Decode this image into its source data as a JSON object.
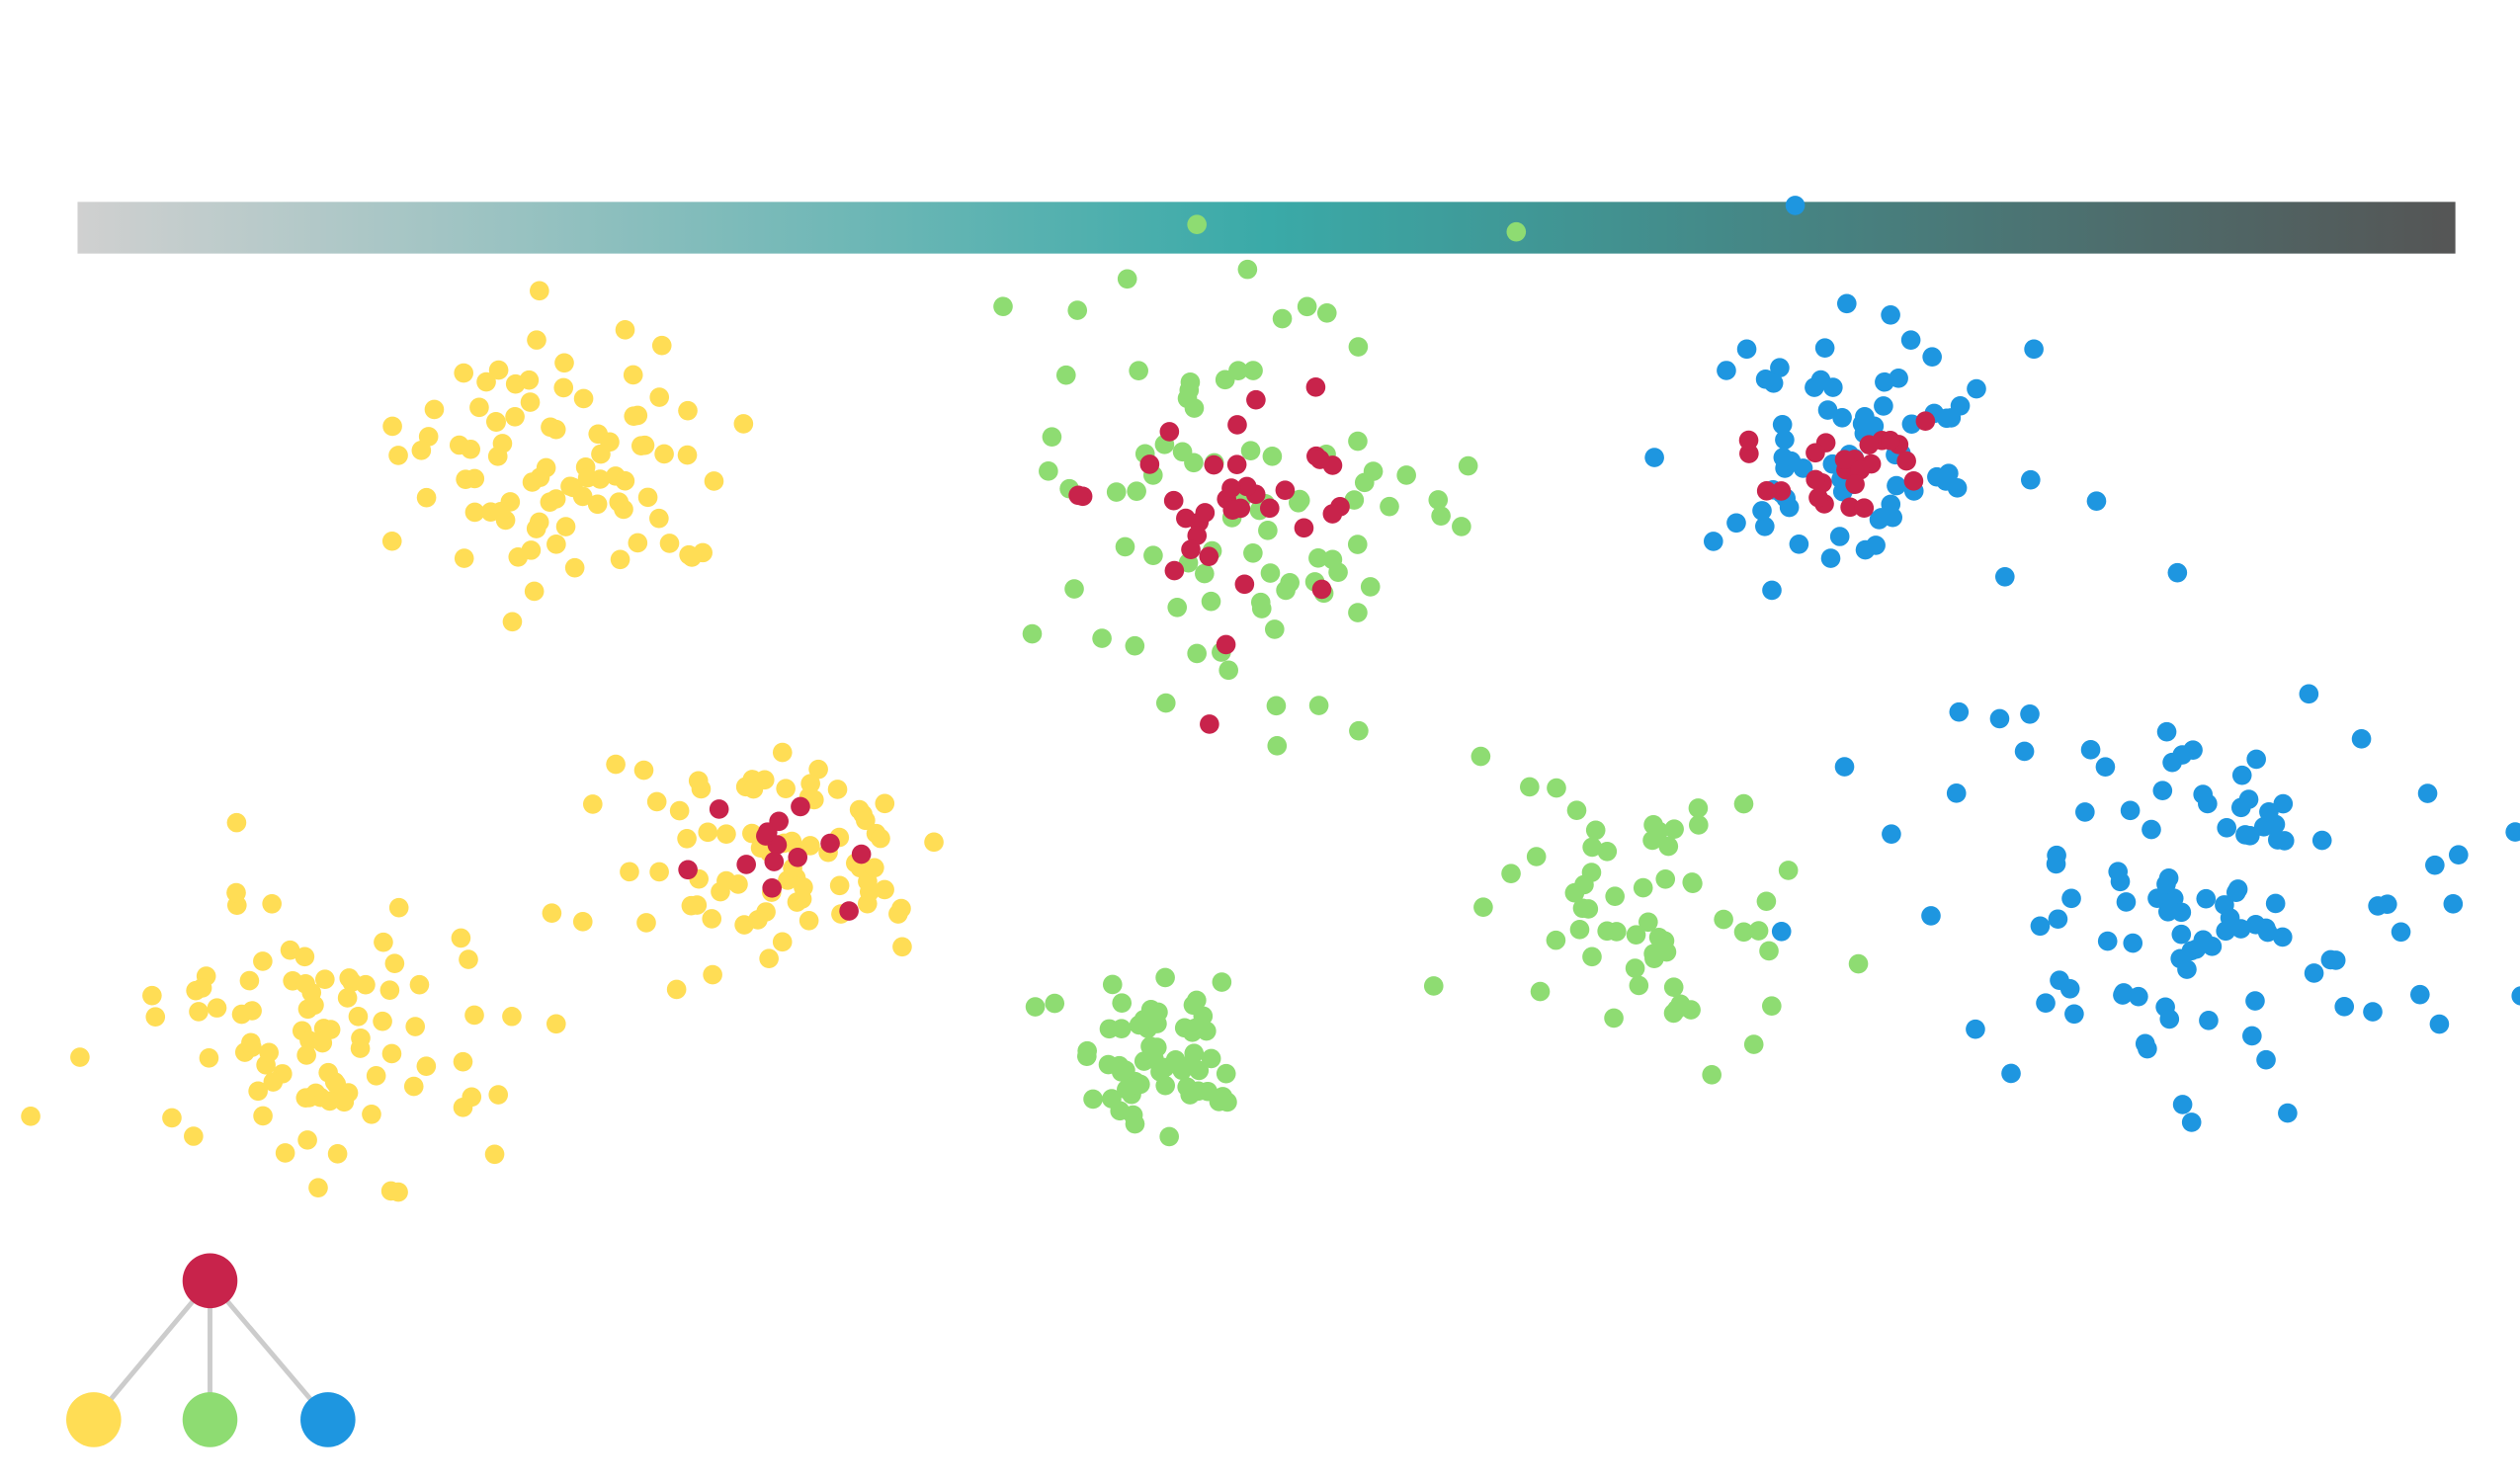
{
  "palette": {
    "parent": "#c8234b",
    "children": [
      "#ffdd55",
      "#8edc72",
      "#1e96e0"
    ]
  },
  "gradient": [
    "#d0d0d0",
    "#3aaaa8",
    "#555555"
  ]
}
